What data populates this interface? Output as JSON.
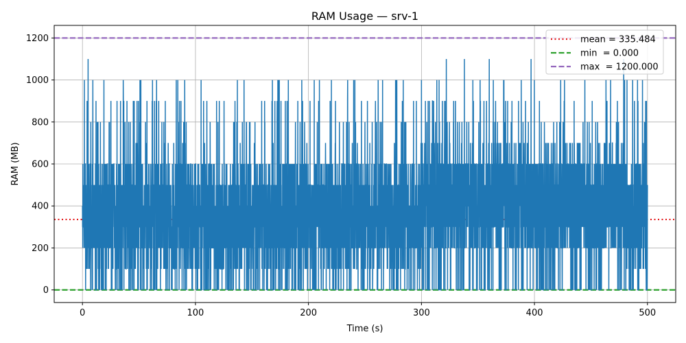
{
  "chart_data": {
    "type": "line",
    "title": "RAM Usage — srv-1",
    "xlabel": "Time (s)",
    "ylabel": "RAM (MB)",
    "xlim": [
      -25,
      525
    ],
    "ylim": [
      -60,
      1260
    ],
    "xticks": [
      0,
      100,
      200,
      300,
      400,
      500
    ],
    "yticks": [
      0,
      200,
      400,
      600,
      800,
      1000,
      1200
    ],
    "grid": true,
    "legend_position": "top-right",
    "series": [
      {
        "color": "#1f77b4",
        "sampling": "one sample every 0.1 s from 0 to 500 s, values in steps of 100 MB between 0 and 1200",
        "x_range": [
          0,
          500
        ],
        "value_set": [
          0,
          100,
          200,
          300,
          400,
          500,
          600,
          700,
          800,
          900,
          1000,
          1100,
          1200
        ],
        "peaks": [
          {
            "x": 5,
            "y": 1100
          },
          {
            "x": 19,
            "y": 1000
          },
          {
            "x": 45,
            "y": 900
          },
          {
            "x": 83,
            "y": 1000
          },
          {
            "x": 105,
            "y": 1000
          },
          {
            "x": 135,
            "y": 900
          },
          {
            "x": 240,
            "y": 1000
          },
          {
            "x": 322,
            "y": 1100
          },
          {
            "x": 338,
            "y": 1100
          },
          {
            "x": 360,
            "y": 1100
          },
          {
            "x": 397,
            "y": 1100
          },
          {
            "x": 479,
            "y": 1100
          }
        ]
      }
    ],
    "reference_lines": [
      {
        "label": "mean = 335.484",
        "y": 335.484,
        "color": "#e31a1c",
        "style": "dotted"
      },
      {
        "label": "min  = 0.000",
        "y": 0.0,
        "color": "#2ca02c",
        "style": "dashed"
      },
      {
        "label": "max  = 1200.000",
        "y": 1200.0,
        "color": "#9467bd",
        "style": "dashed"
      }
    ]
  }
}
